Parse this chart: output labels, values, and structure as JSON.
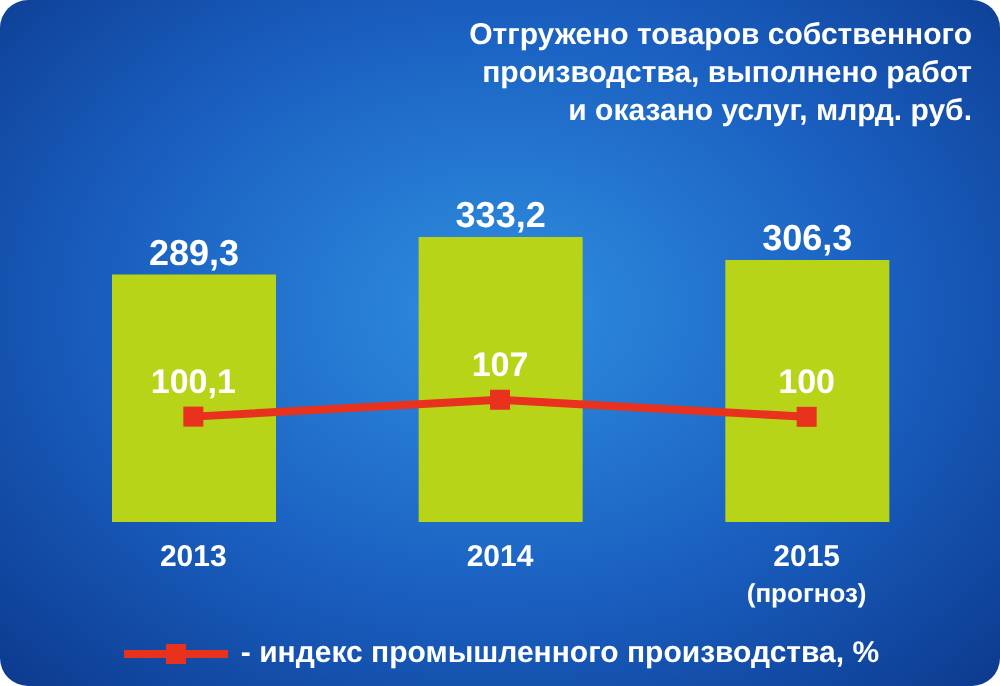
{
  "chart_data": {
    "type": "bar",
    "title": "Отгружено товаров собственного\nпроизводства, выполнено работ\nи оказано услуг, млрд. руб.",
    "categories": [
      "2013",
      "2014",
      "2015\n(прогноз)"
    ],
    "series": [
      {
        "color": "#b8d418",
        "values": [
          289.3,
          333.2,
          306.3
        ],
        "value_labels": [
          "289,3",
          "333,2",
          "306,3"
        ]
      },
      {
        "type": "line",
        "axis": "y2",
        "name": "- индекс промышленного производства, %",
        "color": "#e8321e",
        "values": [
          100.1,
          107,
          100
        ],
        "value_labels": [
          "100,1",
          "107",
          "100"
        ]
      }
    ],
    "marker": "square",
    "line_style": "solid",
    "legend": "bottom"
  }
}
